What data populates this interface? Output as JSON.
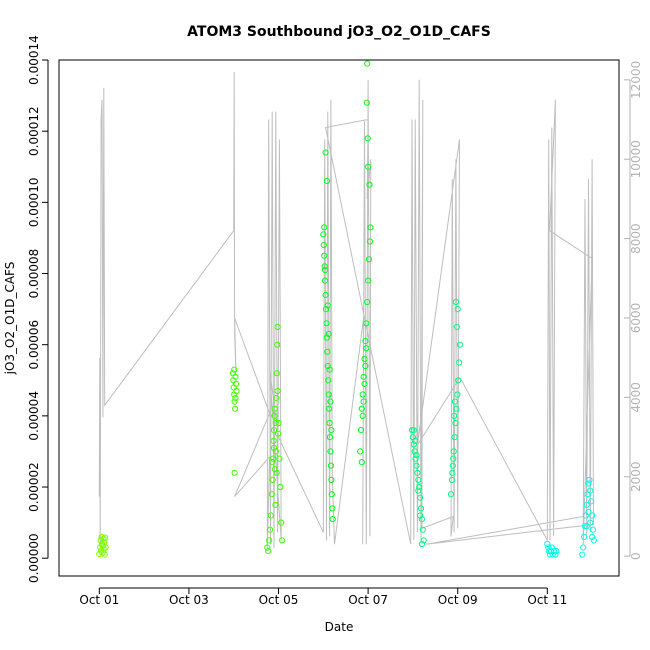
{
  "chart_data": {
    "type": "scatter",
    "title": "ATOM3 Southbound jO3_O2_O1D_CAFS",
    "xlabel": "Date",
    "ylabel": "jO3_O2_O1D_CAFS",
    "x_ticks": [
      "Oct 01",
      "Oct 03",
      "Oct 05",
      "Oct 07",
      "Oct 09",
      "Oct 11"
    ],
    "x_tick_days": [
      1,
      3,
      5,
      7,
      9,
      11
    ],
    "xlim_days": [
      0.1,
      12.6
    ],
    "ylim": [
      -5e-06,
      0.00014
    ],
    "y_ticks": [
      0,
      2e-05,
      4e-05,
      6e-05,
      8e-05,
      0.0001,
      0.00012,
      0.00014
    ],
    "y_tick_labels": [
      "0.00000",
      "0.00002",
      "0.00004",
      "0.00006",
      "0.00008",
      "0.00010",
      "0.00012",
      "0.00014"
    ],
    "y2_ticks": [
      0,
      2000,
      4000,
      6000,
      8000,
      10000,
      12000
    ],
    "y2lim": [
      -500,
      12500
    ],
    "grid": false,
    "series": [
      {
        "kind": "points",
        "color": "#7fff00",
        "points": [
          [
            1.0,
            1.2e-06
          ],
          [
            1.02,
            3e-06
          ],
          [
            1.03,
            5e-06
          ],
          [
            1.04,
            2e-06
          ],
          [
            1.05,
            6e-06
          ],
          [
            1.06,
            4e-06
          ],
          [
            1.07,
            1.5e-06
          ],
          [
            1.08,
            3.5e-06
          ],
          [
            1.09,
            5.5e-06
          ],
          [
            1.1,
            2.5e-06
          ],
          [
            1.11,
            4.5e-06
          ],
          [
            1.12,
            1e-06
          ],
          [
            1.13,
            5.8e-06
          ],
          [
            1.14,
            3e-06
          ]
        ]
      },
      {
        "kind": "points",
        "color": "#40ff00",
        "points": [
          [
            3.98,
            5.2e-05
          ],
          [
            3.99,
            5e-05
          ],
          [
            4.0,
            4.8e-05
          ],
          [
            4.01,
            4.6e-05
          ],
          [
            4.02,
            4.4e-05
          ],
          [
            4.03,
            4.2e-05
          ],
          [
            4.04,
            4.5e-05
          ],
          [
            4.05,
            4.9e-05
          ],
          [
            4.06,
            4.7e-05
          ],
          [
            4.02,
            2.4e-05
          ],
          [
            4.01,
            5.3e-05
          ],
          [
            4.04,
            5.1e-05
          ],
          [
            4.75,
            3e-06
          ],
          [
            4.77,
            2e-06
          ],
          [
            4.79,
            5e-06
          ],
          [
            4.81,
            8e-06
          ],
          [
            4.83,
            1.2e-05
          ],
          [
            4.85,
            1.8e-05
          ],
          [
            4.87,
            2.2e-05
          ],
          [
            4.88,
            2.8e-05
          ],
          [
            4.89,
            3.3e-05
          ],
          [
            4.9,
            3.6e-05
          ],
          [
            4.91,
            4e-05
          ],
          [
            4.92,
            2.5e-05
          ],
          [
            4.93,
            1.5e-05
          ],
          [
            4.94,
            3e-05
          ],
          [
            4.95,
            4.5e-05
          ],
          [
            4.96,
            5.2e-05
          ],
          [
            4.97,
            6e-05
          ],
          [
            4.98,
            6.5e-05
          ],
          [
            4.99,
            3.5e-05
          ],
          [
            5.0,
            3.8e-05
          ],
          [
            5.02,
            2.8e-05
          ],
          [
            5.04,
            2e-05
          ],
          [
            5.06,
            1e-05
          ],
          [
            5.08,
            5e-06
          ],
          [
            4.86,
            2.7e-05
          ],
          [
            4.9,
            3.1e-05
          ],
          [
            4.92,
            4.2e-05
          ],
          [
            4.94,
            3.8e-05
          ],
          [
            4.96,
            2.4e-05
          ],
          [
            4.98,
            4.7e-05
          ]
        ]
      },
      {
        "kind": "points",
        "color": "#00ff1a",
        "points": [
          [
            6.0,
            9.1e-05
          ],
          [
            6.01,
            8.8e-05
          ],
          [
            6.02,
            8.5e-05
          ],
          [
            6.03,
            8.2e-05
          ],
          [
            6.04,
            7.8e-05
          ],
          [
            6.05,
            7.4e-05
          ],
          [
            6.06,
            7e-05
          ],
          [
            6.07,
            6.6e-05
          ],
          [
            6.08,
            6.2e-05
          ],
          [
            6.09,
            5.8e-05
          ],
          [
            6.1,
            5.4e-05
          ],
          [
            6.11,
            5e-05
          ],
          [
            6.12,
            4.6e-05
          ],
          [
            6.13,
            4.2e-05
          ],
          [
            6.14,
            3.8e-05
          ],
          [
            6.15,
            3.4e-05
          ],
          [
            6.16,
            3e-05
          ],
          [
            6.17,
            2.6e-05
          ],
          [
            6.18,
            2.2e-05
          ],
          [
            6.19,
            1.8e-05
          ],
          [
            6.2,
            1.4e-05
          ],
          [
            6.21,
            1.1e-05
          ],
          [
            6.05,
            0.000114
          ],
          [
            6.08,
            0.000106
          ],
          [
            6.02,
            9.3e-05
          ],
          [
            6.04,
            8.1e-05
          ],
          [
            6.1,
            7.1e-05
          ],
          [
            6.12,
            6.3e-05
          ],
          [
            6.14,
            5.3e-05
          ],
          [
            6.16,
            4.4e-05
          ],
          [
            6.18,
            3.6e-05
          ],
          [
            6.82,
            3e-05
          ],
          [
            6.84,
            3.6e-05
          ],
          [
            6.86,
            4.2e-05
          ],
          [
            6.88,
            4.6e-05
          ],
          [
            6.9,
            5.1e-05
          ],
          [
            6.92,
            5.6e-05
          ],
          [
            6.94,
            6.1e-05
          ],
          [
            6.96,
            6.6e-05
          ],
          [
            6.98,
            7.2e-05
          ],
          [
            7.0,
            7.8e-05
          ],
          [
            7.02,
            8.4e-05
          ],
          [
            7.04,
            8.9e-05
          ],
          [
            7.05,
            9.3e-05
          ],
          [
            7.03,
            0.000105
          ],
          [
            7.0,
            0.00011
          ],
          [
            6.99,
            0.000118
          ],
          [
            6.97,
            0.000128
          ],
          [
            6.98,
            0.000139
          ],
          [
            6.86,
            2.7e-05
          ],
          [
            6.88,
            4e-05
          ],
          [
            6.9,
            4.4e-05
          ],
          [
            6.92,
            4.9e-05
          ],
          [
            6.94,
            5.4e-05
          ],
          [
            6.96,
            5.9e-05
          ]
        ]
      },
      {
        "kind": "points",
        "color": "#00ff80",
        "points": [
          [
            7.98,
            3.6e-05
          ],
          [
            8.0,
            3.4e-05
          ],
          [
            8.02,
            3.2e-05
          ],
          [
            8.04,
            3e-05
          ],
          [
            8.06,
            2.8e-05
          ],
          [
            8.08,
            2.6e-05
          ],
          [
            8.1,
            2.4e-05
          ],
          [
            8.12,
            2.2e-05
          ],
          [
            8.14,
            2e-05
          ],
          [
            8.16,
            1.7e-05
          ],
          [
            8.18,
            1.4e-05
          ],
          [
            8.2,
            1.1e-05
          ],
          [
            8.22,
            8e-06
          ],
          [
            8.24,
            5e-06
          ],
          [
            8.02,
            3.6e-05
          ],
          [
            8.05,
            3.3e-05
          ],
          [
            8.08,
            2.9e-05
          ],
          [
            8.12,
            1.9e-05
          ],
          [
            8.16,
            1.2e-05
          ],
          [
            8.2,
            4e-06
          ],
          [
            8.85,
            1.8e-05
          ],
          [
            8.87,
            2.2e-05
          ],
          [
            8.89,
            2.6e-05
          ],
          [
            8.91,
            3e-05
          ],
          [
            8.93,
            3.4e-05
          ],
          [
            8.95,
            3.8e-05
          ],
          [
            8.97,
            4.2e-05
          ],
          [
            8.99,
            4.6e-05
          ],
          [
            9.01,
            5e-05
          ],
          [
            9.03,
            5.5e-05
          ],
          [
            9.05,
            6e-05
          ],
          [
            8.98,
            6.5e-05
          ],
          [
            9.0,
            7e-05
          ],
          [
            8.96,
            7.2e-05
          ],
          [
            8.92,
            4e-05
          ],
          [
            8.94,
            4.4e-05
          ],
          [
            8.9,
            2.8e-05
          ],
          [
            8.88,
            2.4e-05
          ]
        ]
      },
      {
        "kind": "points",
        "color": "#00ffe6",
        "points": [
          [
            11.0,
            4e-06
          ],
          [
            11.02,
            3e-06
          ],
          [
            11.04,
            2e-06
          ],
          [
            11.06,
            1e-06
          ],
          [
            11.08,
            2e-06
          ],
          [
            11.1,
            3e-06
          ],
          [
            11.12,
            1e-06
          ],
          [
            11.15,
            2e-06
          ],
          [
            11.18,
            1e-06
          ],
          [
            11.2,
            2e-06
          ],
          [
            11.78,
            1e-06
          ],
          [
            11.8,
            3e-06
          ],
          [
            11.82,
            6e-06
          ],
          [
            11.84,
            9e-06
          ],
          [
            11.86,
            1.2e-05
          ],
          [
            11.88,
            1.5e-05
          ],
          [
            11.9,
            1.8e-05
          ],
          [
            11.92,
            2.1e-05
          ],
          [
            11.94,
            2.2e-05
          ],
          [
            11.96,
            1.9e-05
          ],
          [
            11.98,
            1.6e-05
          ],
          [
            12.0,
            1.2e-05
          ],
          [
            12.02,
            8e-06
          ],
          [
            12.04,
            5e-06
          ],
          [
            11.88,
            9e-06
          ],
          [
            11.92,
            1.3e-05
          ],
          [
            11.96,
            1e-05
          ],
          [
            12.0,
            6e-06
          ]
        ]
      },
      {
        "kind": "line",
        "axis": "right",
        "color": "#bebebe",
        "points": [
          [
            1.0,
            1500
          ],
          [
            1.01,
            5000
          ],
          [
            1.02,
            200
          ],
          [
            1.04,
            11000
          ],
          [
            1.06,
            11500
          ],
          [
            1.08,
            3500
          ],
          [
            1.1,
            11800
          ],
          [
            1.12,
            3800
          ],
          [
            4.0,
            8200
          ],
          [
            4.01,
            12200
          ],
          [
            4.02,
            5600
          ],
          [
            4.05,
            4600
          ],
          [
            4.02,
            6000
          ],
          [
            4.8,
            3600
          ],
          [
            4.02,
            1500
          ],
          [
            4.8,
            2500
          ],
          [
            4.75,
            200
          ],
          [
            4.78,
            11000
          ],
          [
            4.82,
            300
          ],
          [
            4.86,
            11200
          ],
          [
            4.9,
            200
          ],
          [
            4.94,
            11200
          ],
          [
            4.98,
            600
          ],
          [
            5.02,
            10500
          ],
          [
            5.06,
            400
          ],
          [
            4.8,
            4700
          ],
          [
            5.0,
            3000
          ],
          [
            6.0,
            600
          ],
          [
            6.03,
            10500
          ],
          [
            6.07,
            400
          ],
          [
            6.1,
            11200
          ],
          [
            6.14,
            500
          ],
          [
            6.17,
            11500
          ],
          [
            6.2,
            2000
          ],
          [
            6.25,
            300
          ],
          [
            6.9,
            6000
          ],
          [
            6.88,
            300
          ],
          [
            6.92,
            11000
          ],
          [
            6.96,
            300
          ],
          [
            7.0,
            12000
          ],
          [
            7.04,
            500
          ],
          [
            7.06,
            10000
          ],
          [
            6.98,
            9000
          ],
          [
            7.0,
            11000
          ],
          [
            6.05,
            10800
          ],
          [
            7.95,
            300
          ],
          [
            7.98,
            11000
          ],
          [
            8.02,
            400
          ],
          [
            8.05,
            11000
          ],
          [
            8.1,
            600
          ],
          [
            8.14,
            12000
          ],
          [
            8.18,
            400
          ],
          [
            8.22,
            11500
          ],
          [
            8.2,
            700
          ],
          [
            8.9,
            1000
          ],
          [
            8.85,
            500
          ],
          [
            8.88,
            9500
          ],
          [
            8.92,
            600
          ],
          [
            8.96,
            10000
          ],
          [
            9.0,
            700
          ],
          [
            9.04,
            10500
          ],
          [
            8.1,
            2800
          ],
          [
            9.05,
            4500
          ],
          [
            11.0,
            400
          ],
          [
            11.03,
            10500
          ],
          [
            11.06,
            400
          ],
          [
            11.1,
            10800
          ],
          [
            11.14,
            500
          ],
          [
            11.18,
            11500
          ],
          [
            11.05,
            8200
          ],
          [
            12.0,
            7500
          ],
          [
            11.8,
            300
          ],
          [
            11.84,
            9000
          ],
          [
            11.88,
            500
          ],
          [
            11.92,
            9500
          ],
          [
            11.96,
            600
          ],
          [
            12.0,
            10000
          ],
          [
            12.03,
            800
          ],
          [
            8.3,
            300
          ],
          [
            11.8,
            1000
          ]
        ]
      }
    ]
  }
}
